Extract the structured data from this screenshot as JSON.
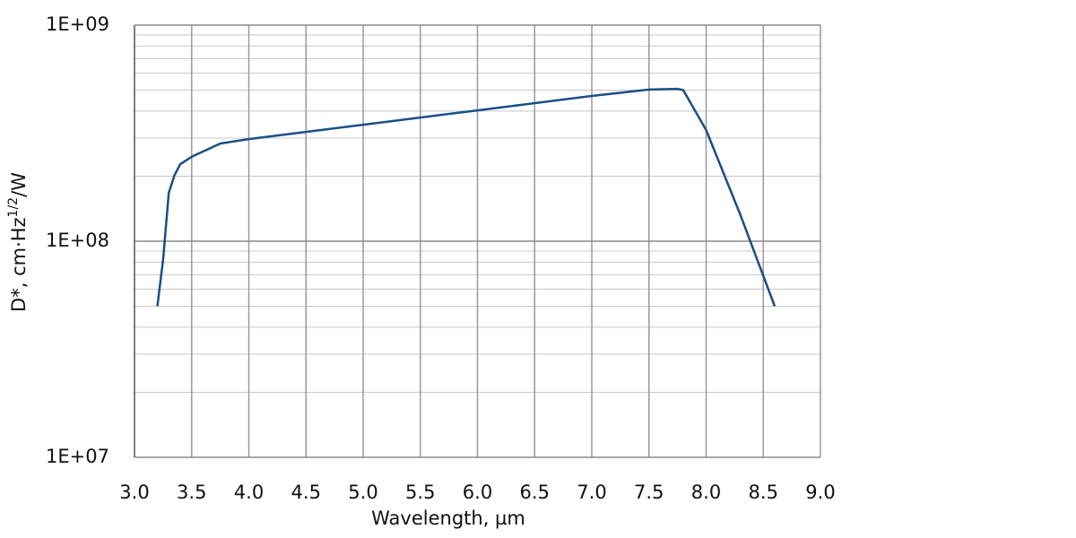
{
  "chart_data": {
    "type": "line",
    "log_y": true,
    "grid": true,
    "xlabel": "Wavelength, µm",
    "ylabel": [
      "D*, cm·Hz",
      "1/2",
      "/W"
    ],
    "x": [
      3.2,
      3.25,
      3.3,
      3.35,
      3.4,
      3.5,
      3.75,
      4.0,
      5.0,
      6.0,
      7.0,
      7.5,
      7.75,
      7.8,
      8.0,
      8.3,
      8.6
    ],
    "series": [
      {
        "name": "D*",
        "color": "#1a4f85",
        "values": [
          50000000,
          82000000,
          167000000,
          202000000,
          227000000,
          246000000,
          283000000,
          297000000,
          346000000,
          403000000,
          470000000,
          503000000,
          507000000,
          500000000,
          327000000,
          132000000,
          50000000
        ]
      }
    ],
    "xlim": [
      3.0,
      9.0
    ],
    "xticks": [
      {
        "value": 3,
        "label": "3.0"
      },
      3.5,
      {
        "value": 4,
        "label": "4.0"
      },
      4.5,
      {
        "value": 5,
        "label": "5.0"
      },
      5.5,
      {
        "value": 6,
        "label": "6.0"
      },
      6.5,
      {
        "value": 7,
        "label": "7.0"
      },
      7.5,
      {
        "value": 8,
        "label": "8.0"
      },
      8.5,
      {
        "value": 9,
        "label": "9.0"
      }
    ],
    "ylim": [
      10000000,
      1000000000
    ],
    "yticks": [
      {
        "value": 10000000,
        "label": "1E+07"
      },
      {
        "value": 100000000,
        "label": "1E+08"
      },
      {
        "value": 1000000000,
        "label": "1E+09"
      }
    ],
    "yminorticks": [
      20000000,
      30000000,
      40000000,
      50000000,
      60000000,
      70000000,
      80000000,
      90000000,
      200000000,
      300000000,
      400000000,
      500000000,
      600000000,
      700000000,
      800000000,
      900000000
    ]
  }
}
